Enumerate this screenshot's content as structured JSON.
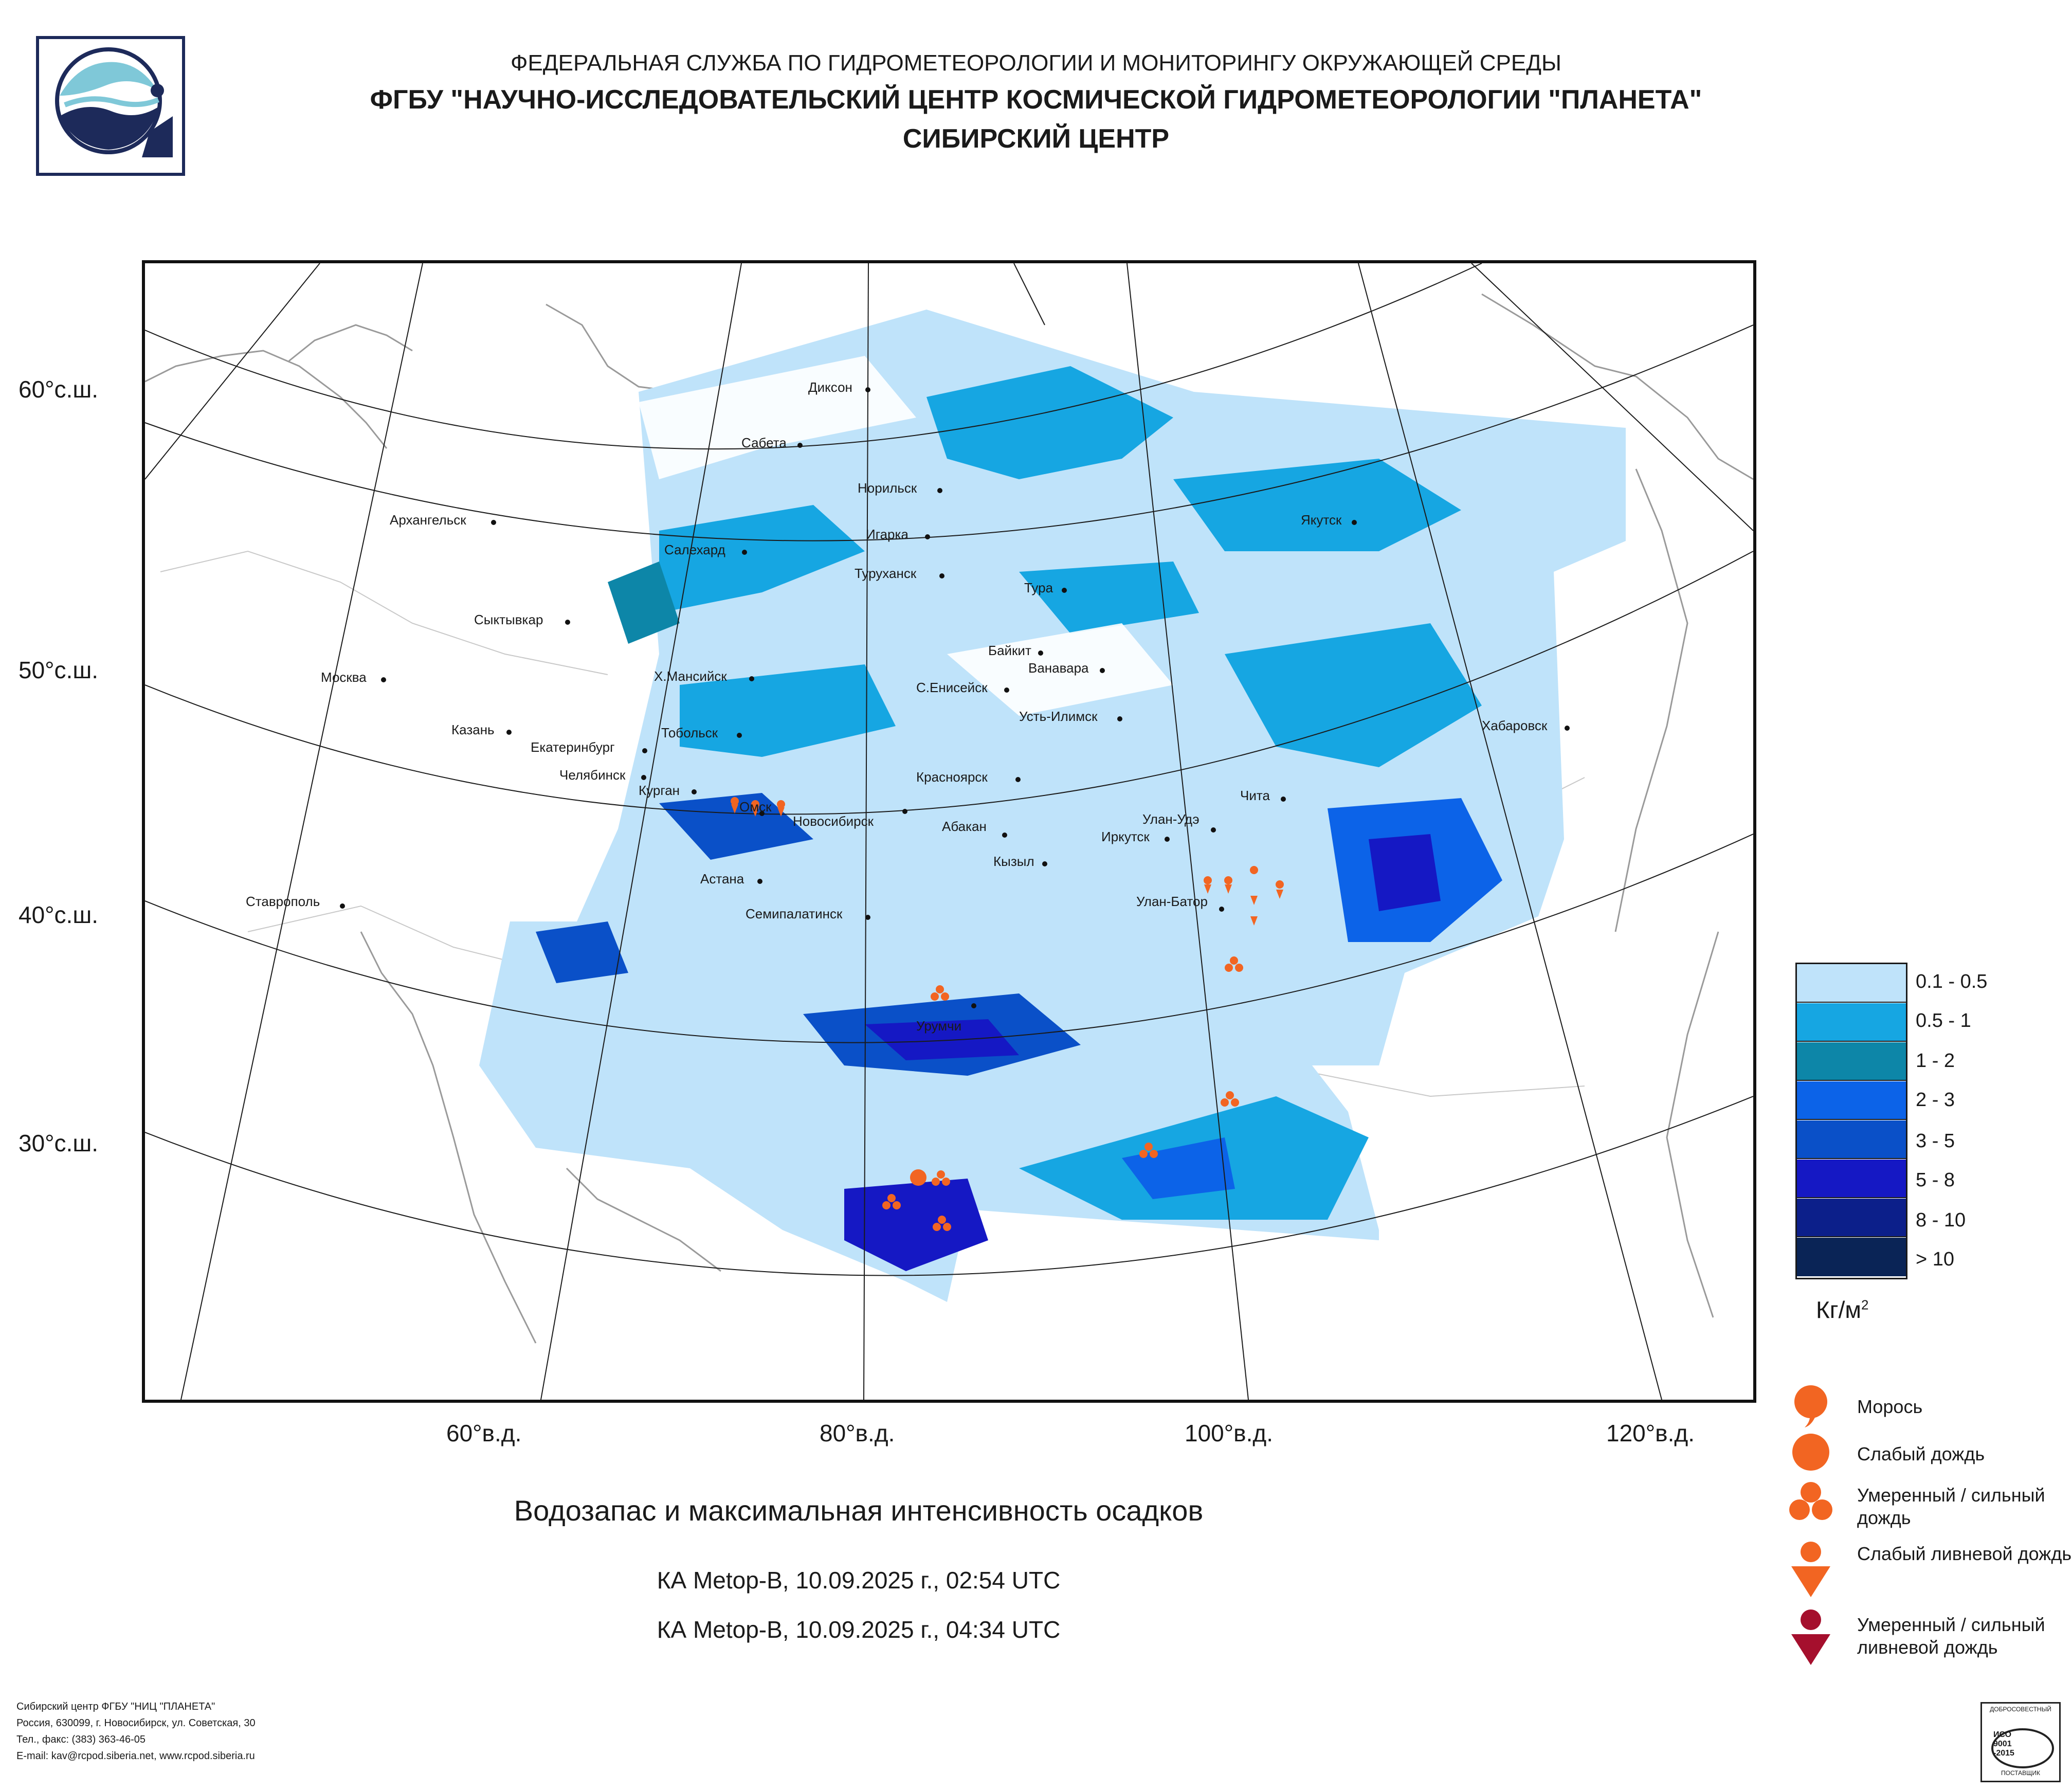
{
  "header": {
    "line1": "ФЕДЕРАЛЬНАЯ СЛУЖБА ПО ГИДРОМЕТЕОРОЛОГИИ И МОНИТОРИНГУ ОКРУЖАЮЩЕЙ СРЕДЫ",
    "line2": "ФГБУ \"НАУЧНО-ИССЛЕДОВАТЕЛЬСКИЙ ЦЕНТР КОСМИЧЕСКОЙ ГИДРОМЕТЕОРОЛОГИИ \"ПЛАНЕТА\"",
    "line3": "СИБИРСКИЙ ЦЕНТР"
  },
  "map": {
    "lat_labels": [
      "60°с.ш.",
      "50°с.ш.",
      "40°с.ш.",
      "30°с.ш."
    ],
    "lon_labels": [
      "60°в.д.",
      "80°в.д.",
      "100°в.д.",
      "120°в.д."
    ],
    "cities": [
      "Диксон",
      "Сабета",
      "Норильск",
      "Архангельск",
      "Игарка",
      "Якутск",
      "Салехард",
      "Туруханск",
      "Тура",
      "Сыктывкар",
      "Байкит",
      "Ванавара",
      "Москва",
      "Х.Мансийск",
      "С.Енисейск",
      "Усть-Илимск",
      "Хабаровск",
      "Казань",
      "Тобольск",
      "Екатеринбург",
      "Челябинск",
      "Курган",
      "Красноярск",
      "Чита",
      "Омск",
      "Новосибирск",
      "Абакан",
      "Улан-Удэ",
      "Иркутск",
      "Кызыл",
      "Астана",
      "Ставрополь",
      "Улан-Батор",
      "Семипалатинск",
      "Урумчи"
    ]
  },
  "caption": {
    "title": "Водозапас и максимальная интенсивность осадков",
    "pass1": "КА Metop-B, 10.09.2025 г., 02:54 UTC",
    "pass2": "КА Metop-B, 10.09.2025 г., 04:34 UTC"
  },
  "legend": {
    "classes": [
      {
        "label": "0.1 - 0.5",
        "color": "#bfe3fa"
      },
      {
        "label": "0.5 - 1",
        "color": "#16a6e2"
      },
      {
        "label": "1 - 2",
        "color": "#0d86a8"
      },
      {
        "label": "2 - 3",
        "color": "#0c63e8"
      },
      {
        "label": "3 - 5",
        "color": "#0a50c8"
      },
      {
        "label": "5 - 8",
        "color": "#1518c4"
      },
      {
        "label": "8 - 10",
        "color": "#0c1f8a"
      },
      {
        "label": "> 10",
        "color": "#0a2456"
      }
    ],
    "unit": "Кг/м",
    "unit_sup": "2"
  },
  "precip": {
    "types": [
      {
        "label": "Морось",
        "color": "#f26522"
      },
      {
        "label": "Слабый дождь",
        "color": "#f26522"
      },
      {
        "label": "Умеренный / сильный дождь",
        "color": "#f26522"
      },
      {
        "label": "Слабый ливневой дождь",
        "color": "#f26522"
      },
      {
        "label": "Умеренный / сильный ливневой дождь",
        "color": "#a50f2d"
      }
    ]
  },
  "footer": {
    "line1": "Сибирский центр ФГБУ \"НИЦ \"ПЛАНЕТА\"",
    "line2": "Россия, 630099, г. Новосибирск, ул. Советская, 30",
    "line3": "Тел., факс: (383) 363-46-05",
    "line4": "E-mail: kav@rcpod.siberia.net, www.rcpod.siberia.ru"
  },
  "iso_badge": {
    "top": "ДОБРОСОВЕСТНЫЙ",
    "mid1": "ИСО",
    "mid2": "9001",
    "mid3": "-2015",
    "bottom": "ПОСТАВЩИК"
  }
}
